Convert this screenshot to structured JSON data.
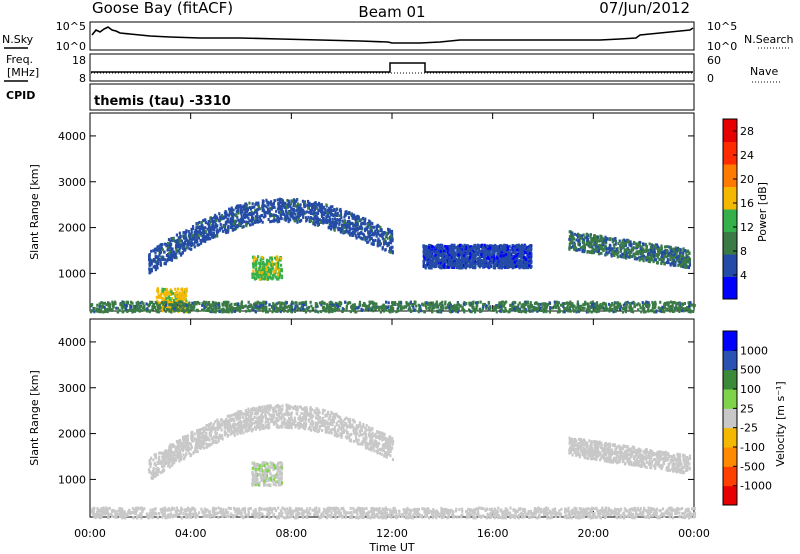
{
  "header": {
    "station": "Goose Bay (fitACF)",
    "beam": "Beam 01",
    "date": "07/Jun/2012"
  },
  "status_panels": {
    "nsky_label": "N.Sky",
    "nsearch_label": "N.Search",
    "freq_label_line1": "Freq.",
    "freq_label_line2": "[MHz]",
    "nave_label": "Nave",
    "cpid_label": "CPID",
    "noise_left_ticks": [
      "10^5",
      "10^0"
    ],
    "noise_right_ticks": [
      "10^5",
      "10^0"
    ],
    "freq_left_ticks": [
      "18",
      "8"
    ],
    "freq_right_ticks": [
      "60",
      "0"
    ],
    "cpid_text": "themis (tau) -3310"
  },
  "colors": {
    "power_scale": [
      "#0000ff",
      "#244ca6",
      "#3a7a45",
      "#35b04a",
      "#f5b800",
      "#ff7a00",
      "#ff2a00",
      "#e60000"
    ],
    "velocity_scale": [
      "#0000ff",
      "#2952b3",
      "#3a8a3a",
      "#7fd34a",
      "#c8c8c8",
      "#f5b800",
      "#ff8a00",
      "#ff4000",
      "#e60000"
    ]
  },
  "chart_data": [
    {
      "type": "heatmap",
      "title": "",
      "xlabel": "Time UT",
      "ylabel": "Slant Range [km]",
      "x_tick_labels": [
        "00:00",
        "04:00",
        "08:00",
        "12:00",
        "16:00",
        "20:00",
        "00:00"
      ],
      "y_tick_labels": [
        "1000",
        "2000",
        "3000",
        "4000"
      ],
      "xlim": [
        0,
        24
      ],
      "ylim": [
        180,
        4500
      ],
      "colorbar_label": "Power [dB]",
      "colorbar_ticks": [
        "4",
        "8",
        "12",
        "16",
        "20",
        "24",
        "28"
      ],
      "colorbar_range": [
        0,
        30
      ],
      "features": [
        {
          "description": "arc",
          "t_start": 2.3,
          "t_end": 12.0,
          "range_start": 1250,
          "range_peak": 2400,
          "range_end": 1700,
          "value": 6
        },
        {
          "description": "arc",
          "t_start": 13.2,
          "t_end": 17.5,
          "range": 1400,
          "value": 5
        },
        {
          "description": "patch",
          "t_center": 7.0,
          "range_center": 1150,
          "value": 14
        },
        {
          "description": "patch",
          "t_center": 3.2,
          "range_center": 450,
          "value": 16
        },
        {
          "description": "band",
          "t_start": 19.0,
          "t_end": 23.8,
          "range_start": 1750,
          "range_end": 1350,
          "value": 8
        },
        {
          "description": "ground band",
          "t_start": 0.0,
          "t_end": 24.0,
          "range": 300,
          "value": 9
        }
      ]
    },
    {
      "type": "heatmap",
      "title": "",
      "xlabel": "Time UT",
      "ylabel": "Slant Range [km]",
      "x_tick_labels": [
        "00:00",
        "04:00",
        "08:00",
        "12:00",
        "16:00",
        "20:00",
        "00:00"
      ],
      "y_tick_labels": [
        "1000",
        "2000",
        "3000",
        "4000"
      ],
      "xlim": [
        0,
        24
      ],
      "ylim": [
        180,
        4500
      ],
      "colorbar_label": "Velocity [m s⁻¹]",
      "colorbar_ticks": [
        "1000",
        "500",
        "100",
        "25",
        "-25",
        "-100",
        "-500",
        "-1000"
      ],
      "colorbar_range": [
        -1000,
        1000
      ],
      "features": [
        {
          "description": "arc",
          "t_start": 2.3,
          "t_end": 12.0,
          "range_start": 1250,
          "range_peak": 2400,
          "range_end": 1700,
          "value": 0
        },
        {
          "description": "patch",
          "t_center": 7.0,
          "range_center": 1150,
          "value": 100
        },
        {
          "description": "band",
          "t_start": 19.0,
          "t_end": 23.8,
          "range_start": 1750,
          "range_end": 1350,
          "value": 0
        },
        {
          "description": "ground band",
          "t_start": 0.0,
          "t_end": 24.0,
          "range": 300,
          "value": 50
        }
      ]
    }
  ]
}
